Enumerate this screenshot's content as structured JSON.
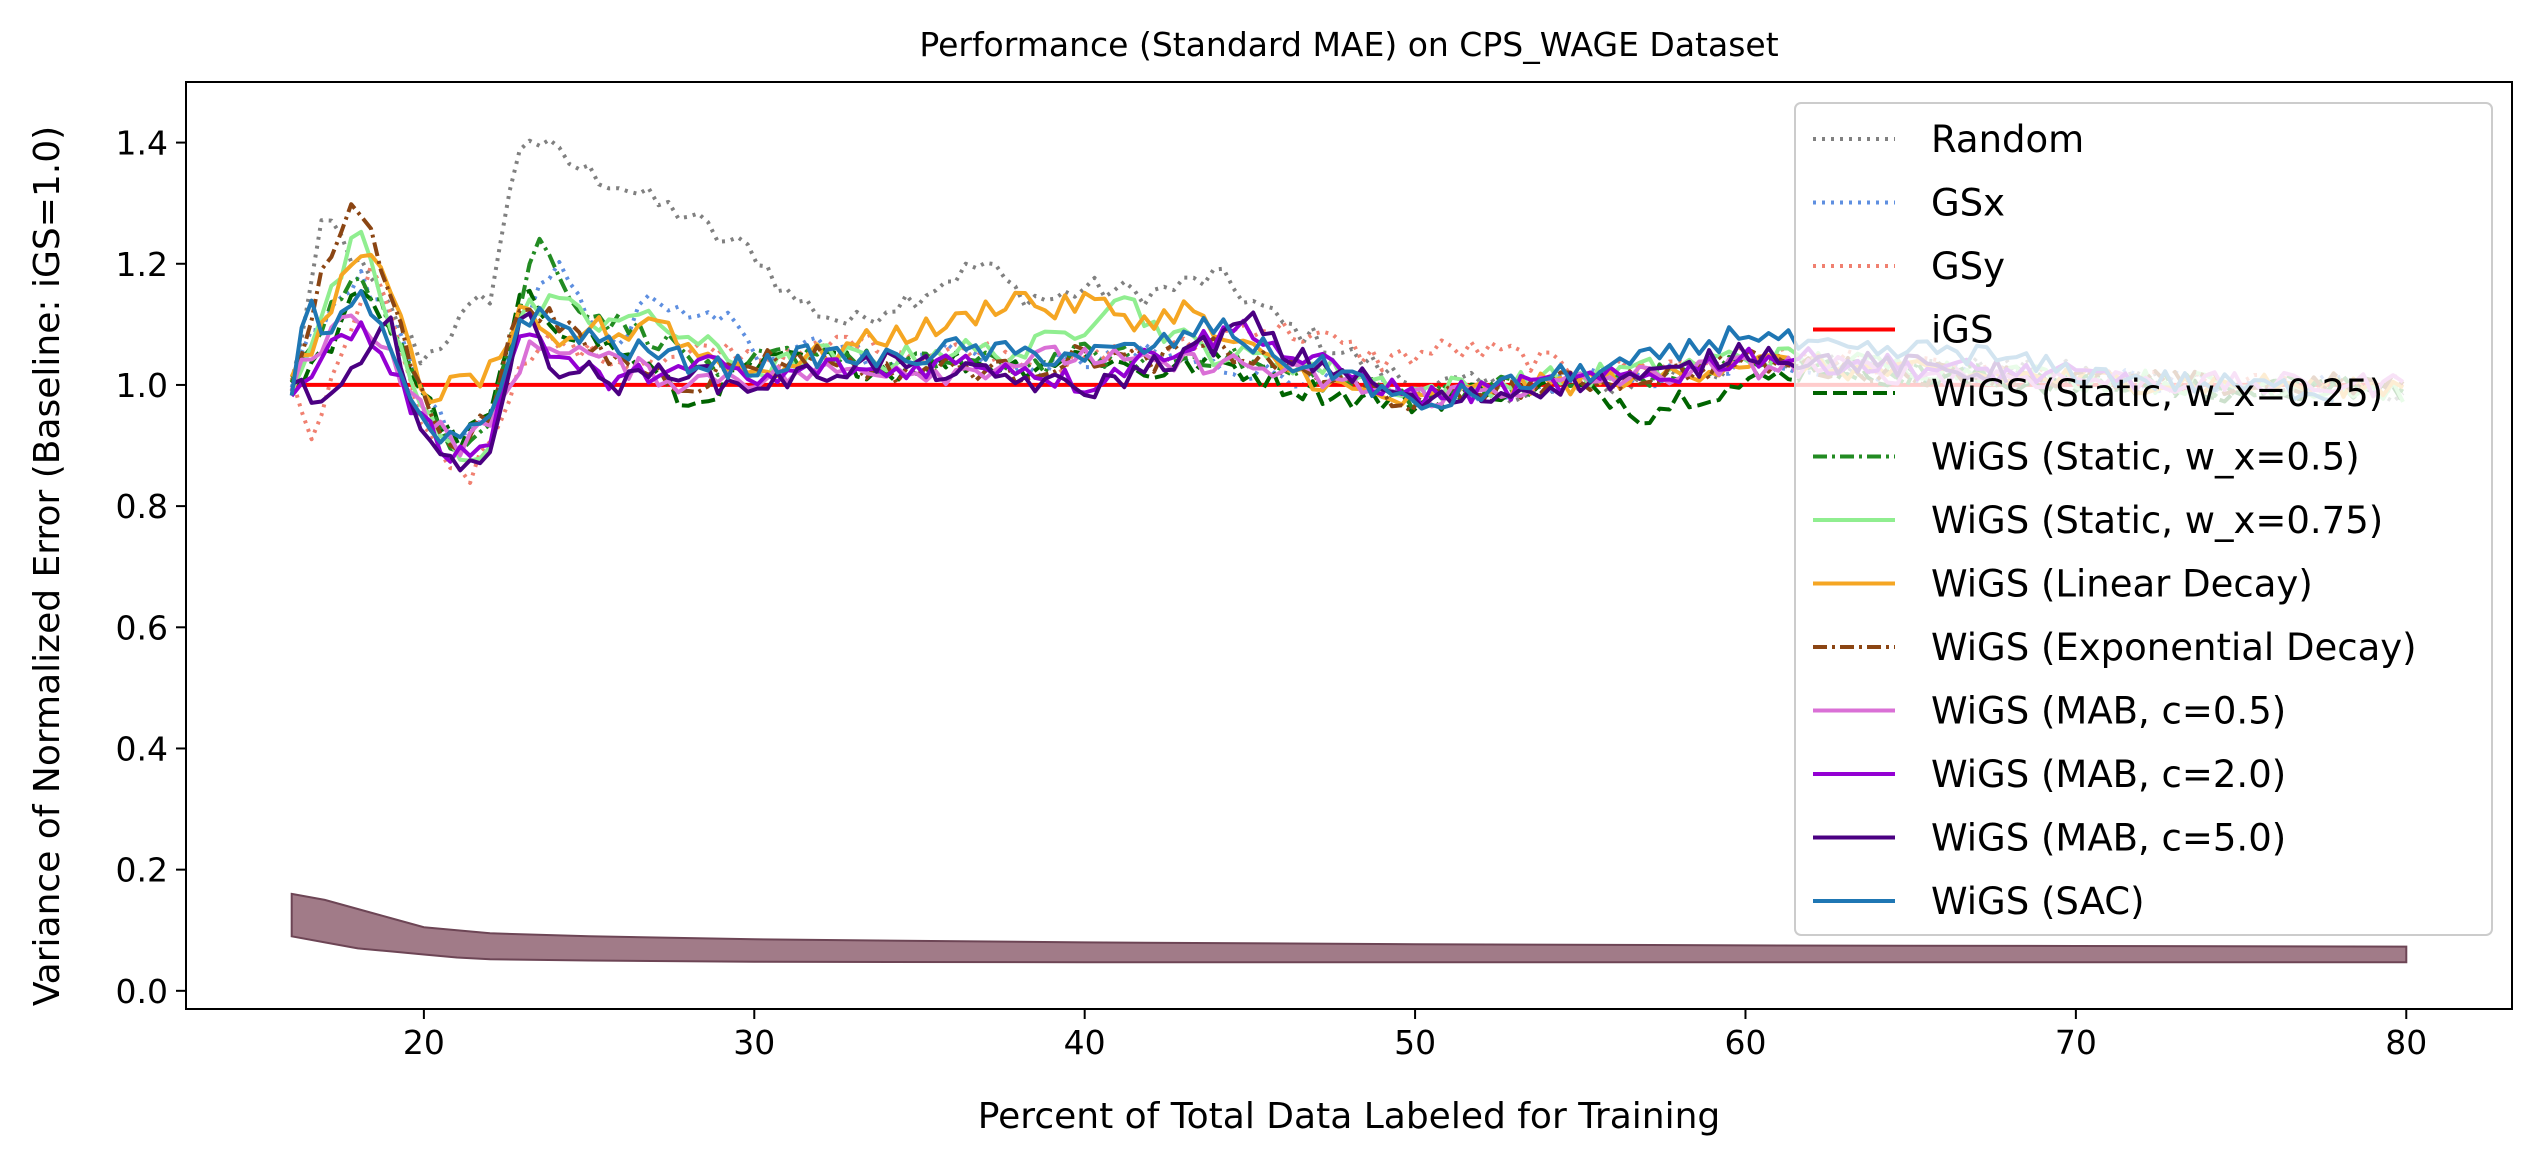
{
  "chart_data": {
    "type": "line",
    "title": "Performance (Standard MAE) on CPS_WAGE Dataset",
    "xlabel": "Percent of Total Data Labeled for Training",
    "ylabel": "Variance of Normalized Error (Baseline: iGS=1.0)",
    "xlim": [
      12.8,
      83.2
    ],
    "ylim": [
      -0.03,
      1.5
    ],
    "xticks": [
      20,
      30,
      40,
      50,
      60,
      70,
      80
    ],
    "yticks": [
      0.0,
      0.2,
      0.4,
      0.6,
      0.8,
      1.0,
      1.2,
      1.4
    ],
    "ytick_labels": [
      "0.0",
      "0.2",
      "0.4",
      "0.6",
      "0.8",
      "1.0",
      "1.2",
      "1.4"
    ],
    "grid": false,
    "legend_position": "top-right",
    "variance_band": {
      "x": [
        16,
        17,
        18,
        19,
        20,
        21,
        22,
        25,
        30,
        40,
        50,
        60,
        70,
        80
      ],
      "lower": [
        0.09,
        0.08,
        0.07,
        0.065,
        0.06,
        0.055,
        0.052,
        0.05,
        0.048,
        0.047,
        0.047,
        0.047,
        0.047,
        0.047
      ],
      "upper": [
        0.16,
        0.15,
        0.135,
        0.12,
        0.105,
        0.1,
        0.095,
        0.09,
        0.085,
        0.08,
        0.077,
        0.075,
        0.074,
        0.073
      ],
      "color": "#8a5a6a"
    },
    "series": [
      {
        "name": "Random",
        "color": "#808080",
        "dash": "dotted",
        "end": 80,
        "x": [
          16,
          17,
          18,
          19,
          20,
          21,
          22,
          23,
          24,
          25,
          26,
          27,
          28,
          29,
          30,
          31,
          32,
          33,
          34,
          35,
          36,
          37,
          38,
          39,
          40,
          42,
          44,
          46,
          48,
          50,
          52,
          54,
          56,
          58,
          60,
          63,
          66,
          70,
          75,
          80
        ],
        "y": [
          1.0,
          1.28,
          1.2,
          1.12,
          1.04,
          1.1,
          1.15,
          1.42,
          1.38,
          1.35,
          1.33,
          1.3,
          1.28,
          1.24,
          1.22,
          1.15,
          1.12,
          1.1,
          1.13,
          1.15,
          1.18,
          1.2,
          1.15,
          1.14,
          1.16,
          1.15,
          1.18,
          1.1,
          1.05,
          1.0,
          1.0,
          0.98,
          1.0,
          1.02,
          1.03,
          1.04,
          1.03,
          1.02,
          1.0,
          0.99
        ]
      },
      {
        "name": "GSx",
        "color": "#5e8fe0",
        "dash": "dotted",
        "end": 80,
        "x": [
          16,
          17,
          18,
          19,
          20,
          21,
          22,
          23,
          24,
          25,
          26,
          27,
          28,
          29,
          30,
          32,
          34,
          36,
          38,
          40,
          42,
          44,
          46,
          48,
          50,
          52,
          54,
          56,
          58,
          60,
          63,
          66,
          70,
          75,
          80
        ],
        "y": [
          1.0,
          1.12,
          1.18,
          1.1,
          0.98,
          0.9,
          0.95,
          1.12,
          1.2,
          1.1,
          1.08,
          1.15,
          1.1,
          1.12,
          1.05,
          1.08,
          1.03,
          1.06,
          1.02,
          1.04,
          1.05,
          1.03,
          1.02,
          1.0,
          0.98,
          0.99,
          1.0,
          1.01,
          1.02,
          1.04,
          1.03,
          1.02,
          1.01,
          1.0,
          1.0
        ]
      },
      {
        "name": "GSy",
        "color": "#f08070",
        "dash": "dotted",
        "end": 80,
        "x": [
          16,
          16.7,
          17.5,
          18.5,
          19.5,
          20.5,
          21.5,
          22.5,
          23.5,
          25,
          27,
          29,
          31,
          33,
          35,
          37,
          39,
          41,
          43,
          45,
          47,
          49,
          51,
          53,
          55,
          57,
          59,
          61,
          64,
          67,
          70,
          75,
          80
        ],
        "y": [
          1.0,
          0.9,
          1.05,
          1.2,
          1.0,
          0.88,
          0.85,
          0.98,
          1.08,
          1.05,
          1.03,
          1.06,
          1.04,
          1.08,
          1.05,
          1.06,
          1.03,
          1.05,
          1.06,
          1.1,
          1.08,
          1.04,
          1.06,
          1.05,
          1.02,
          1.03,
          1.04,
          1.05,
          1.03,
          1.02,
          1.01,
          1.0,
          1.0
        ]
      },
      {
        "name": "iGS",
        "color": "#ff0000",
        "dash": "solid",
        "end": 80,
        "x": [
          16,
          80
        ],
        "y": [
          1.0,
          1.0
        ]
      },
      {
        "name": "WiGS (Static, w_x=0.25)",
        "color": "#006400",
        "dash": "dashed",
        "end": 80,
        "x": [
          16,
          17,
          18,
          19,
          20,
          21,
          22,
          23,
          24,
          25,
          26,
          27,
          28,
          29,
          30,
          32,
          34,
          36,
          38,
          40,
          42,
          44,
          46,
          48,
          50,
          52,
          54,
          56,
          57,
          58,
          60,
          62,
          64,
          66,
          70,
          75,
          80
        ],
        "y": [
          1.0,
          1.05,
          1.15,
          1.1,
          0.98,
          0.9,
          0.95,
          1.15,
          1.1,
          1.08,
          1.05,
          1.02,
          0.96,
          1.0,
          1.03,
          1.05,
          1.02,
          1.04,
          1.03,
          1.05,
          1.02,
          1.04,
          1.0,
          0.98,
          0.97,
          0.99,
          1.0,
          0.98,
          0.95,
          0.98,
          1.0,
          1.03,
          1.02,
          1.01,
          1.0,
          0.99,
          0.99
        ]
      },
      {
        "name": "WiGS (Static, w_x=0.5)",
        "color": "#228b22",
        "dash": "dashdot",
        "end": 80,
        "x": [
          16,
          17,
          18,
          19,
          20,
          21,
          22,
          23,
          23.5,
          24,
          25,
          26,
          27,
          28,
          29,
          30,
          32,
          34,
          36,
          38,
          40,
          42,
          44,
          46,
          48,
          50,
          52,
          54,
          56,
          58,
          60,
          62,
          65,
          70,
          75,
          80
        ],
        "y": [
          1.0,
          1.1,
          1.2,
          1.1,
          0.97,
          0.9,
          0.95,
          1.15,
          1.25,
          1.18,
          1.12,
          1.1,
          1.08,
          1.05,
          1.0,
          1.04,
          1.06,
          1.03,
          1.04,
          1.03,
          1.05,
          1.04,
          1.05,
          1.02,
          1.0,
          0.98,
          1.0,
          0.99,
          1.01,
          1.02,
          1.04,
          1.03,
          1.02,
          1.01,
          1.0,
          1.0
        ]
      },
      {
        "name": "WiGS (Static, w_x=0.75)",
        "color": "#90ee90",
        "dash": "solid",
        "end": 80,
        "x": [
          16,
          17,
          18,
          19,
          20,
          21,
          22,
          23,
          24,
          25,
          26,
          27,
          28,
          29,
          30,
          32,
          34,
          36,
          38,
          40,
          41,
          42,
          44,
          46,
          48,
          50,
          52,
          54,
          56,
          58,
          60,
          62,
          65,
          70,
          75,
          80
        ],
        "y": [
          1.0,
          1.12,
          1.25,
          1.1,
          0.95,
          0.88,
          0.9,
          1.12,
          1.15,
          1.1,
          1.12,
          1.1,
          1.08,
          1.05,
          1.02,
          1.05,
          1.04,
          1.06,
          1.05,
          1.1,
          1.16,
          1.1,
          1.05,
          1.04,
          1.02,
          0.99,
          1.0,
          1.01,
          1.02,
          1.03,
          1.05,
          1.04,
          1.03,
          1.01,
          1.0,
          0.99
        ]
      },
      {
        "name": "WiGS (Linear Decay)",
        "color": "#f5a623",
        "dash": "solid",
        "end": 80,
        "x": [
          16,
          17,
          18,
          19,
          20,
          21,
          22,
          23,
          24,
          25,
          26,
          27,
          28,
          29,
          30,
          32,
          34,
          36,
          38,
          39,
          40,
          42,
          43,
          44,
          46,
          48,
          50,
          52,
          54,
          56,
          58,
          60,
          62,
          65,
          70,
          75,
          80
        ],
        "y": [
          1.0,
          1.1,
          1.24,
          1.15,
          0.98,
          1.0,
          1.02,
          1.12,
          1.05,
          1.1,
          1.08,
          1.12,
          1.06,
          1.04,
          1.02,
          1.05,
          1.08,
          1.1,
          1.15,
          1.12,
          1.14,
          1.1,
          1.13,
          1.08,
          1.03,
          0.99,
          0.97,
          0.99,
          1.0,
          1.01,
          1.02,
          1.04,
          1.03,
          1.02,
          1.01,
          1.0,
          1.0
        ]
      },
      {
        "name": "WiGS (Exponential Decay)",
        "color": "#8b4513",
        "dash": "dashdot",
        "end": 80,
        "x": [
          16,
          17,
          18,
          19,
          20,
          21,
          22,
          23,
          24,
          25,
          26,
          27,
          28,
          29,
          30,
          32,
          34,
          36,
          38,
          40,
          42,
          44,
          46,
          48,
          50,
          52,
          54,
          56,
          58,
          60,
          62,
          65,
          70,
          75,
          80
        ],
        "y": [
          1.0,
          1.2,
          1.3,
          1.15,
          0.97,
          0.9,
          0.95,
          1.15,
          1.1,
          1.06,
          1.04,
          1.02,
          1.0,
          1.02,
          1.04,
          1.05,
          1.02,
          1.03,
          1.02,
          1.05,
          1.04,
          1.06,
          1.03,
          1.0,
          0.97,
          0.99,
          1.0,
          1.01,
          1.02,
          1.04,
          1.03,
          1.02,
          1.01,
          1.0,
          1.0
        ]
      },
      {
        "name": "WiGS (MAB, c=0.5)",
        "color": "#da70d6",
        "dash": "solid",
        "end": 80,
        "x": [
          16,
          17,
          18,
          19,
          20,
          21,
          22,
          23,
          24,
          25,
          26,
          27,
          28,
          29,
          30,
          32,
          34,
          36,
          38,
          40,
          42,
          44,
          46,
          48,
          50,
          52,
          54,
          56,
          58,
          60,
          62,
          65,
          70,
          75,
          80
        ],
        "y": [
          1.0,
          1.08,
          1.12,
          1.05,
          0.95,
          0.9,
          0.93,
          1.05,
          1.07,
          1.05,
          1.03,
          1.02,
          1.0,
          1.02,
          1.01,
          1.02,
          1.03,
          1.02,
          1.04,
          1.05,
          1.03,
          1.04,
          1.02,
          1.0,
          0.98,
          0.99,
          1.0,
          1.01,
          1.02,
          1.03,
          1.03,
          1.02,
          1.01,
          1.0,
          1.0
        ]
      },
      {
        "name": "WiGS (MAB, c=2.0)",
        "color": "#9400d3",
        "dash": "solid",
        "end": 72,
        "x": [
          16,
          17,
          18,
          19,
          20,
          21,
          22,
          23,
          24,
          25,
          26,
          27,
          28,
          29,
          30,
          32,
          34,
          36,
          38,
          40,
          42,
          44,
          45,
          46,
          48,
          50,
          52,
          54,
          56,
          58,
          60,
          62,
          65,
          68,
          72
        ],
        "y": [
          1.0,
          1.05,
          1.1,
          1.03,
          0.93,
          0.88,
          0.92,
          1.1,
          1.05,
          1.02,
          1.0,
          1.03,
          1.02,
          1.04,
          1.0,
          1.03,
          1.02,
          1.04,
          1.03,
          1.0,
          1.05,
          1.08,
          1.1,
          1.05,
          1.02,
          0.98,
          0.99,
          1.0,
          1.01,
          1.02,
          1.05,
          1.04,
          1.03,
          1.02,
          1.01
        ]
      },
      {
        "name": "WiGS (MAB, c=5.0)",
        "color": "#4b0082",
        "dash": "solid",
        "end": 68,
        "x": [
          16,
          17,
          18,
          19,
          20,
          21,
          22,
          23,
          24,
          25,
          26,
          27,
          28,
          29,
          30,
          32,
          34,
          36,
          38,
          40,
          42,
          44,
          45,
          46,
          48,
          50,
          52,
          54,
          56,
          58,
          60,
          62,
          65,
          68
        ],
        "y": [
          1.0,
          0.97,
          1.02,
          1.1,
          0.92,
          0.85,
          0.9,
          1.12,
          1.03,
          1.02,
          1.0,
          1.02,
          1.03,
          1.0,
          1.0,
          1.02,
          1.04,
          1.02,
          1.01,
          0.99,
          1.03,
          1.07,
          1.11,
          1.05,
          1.02,
          0.97,
          0.98,
          1.0,
          1.01,
          1.02,
          1.06,
          1.04,
          1.03,
          1.02
        ]
      },
      {
        "name": "WiGS (SAC)",
        "color": "#1f77b4",
        "dash": "solid",
        "end": 78,
        "x": [
          16,
          16.5,
          17,
          18,
          19,
          20,
          21,
          22,
          23,
          24,
          25,
          26,
          27,
          28,
          29,
          30,
          32,
          34,
          36,
          38,
          40,
          42,
          44,
          46,
          48,
          50,
          52,
          54,
          56,
          58,
          60,
          62,
          64,
          66,
          68,
          70,
          74,
          78
        ],
        "y": [
          1.0,
          1.15,
          1.05,
          1.17,
          1.05,
          0.92,
          0.9,
          0.95,
          1.12,
          1.1,
          1.08,
          1.06,
          1.05,
          1.04,
          1.03,
          1.03,
          1.05,
          1.04,
          1.06,
          1.05,
          1.05,
          1.06,
          1.1,
          1.04,
          1.02,
          0.96,
          0.99,
          1.01,
          1.03,
          1.05,
          1.09,
          1.06,
          1.05,
          1.06,
          1.04,
          1.02,
          1.0,
          0.99
        ]
      }
    ]
  }
}
